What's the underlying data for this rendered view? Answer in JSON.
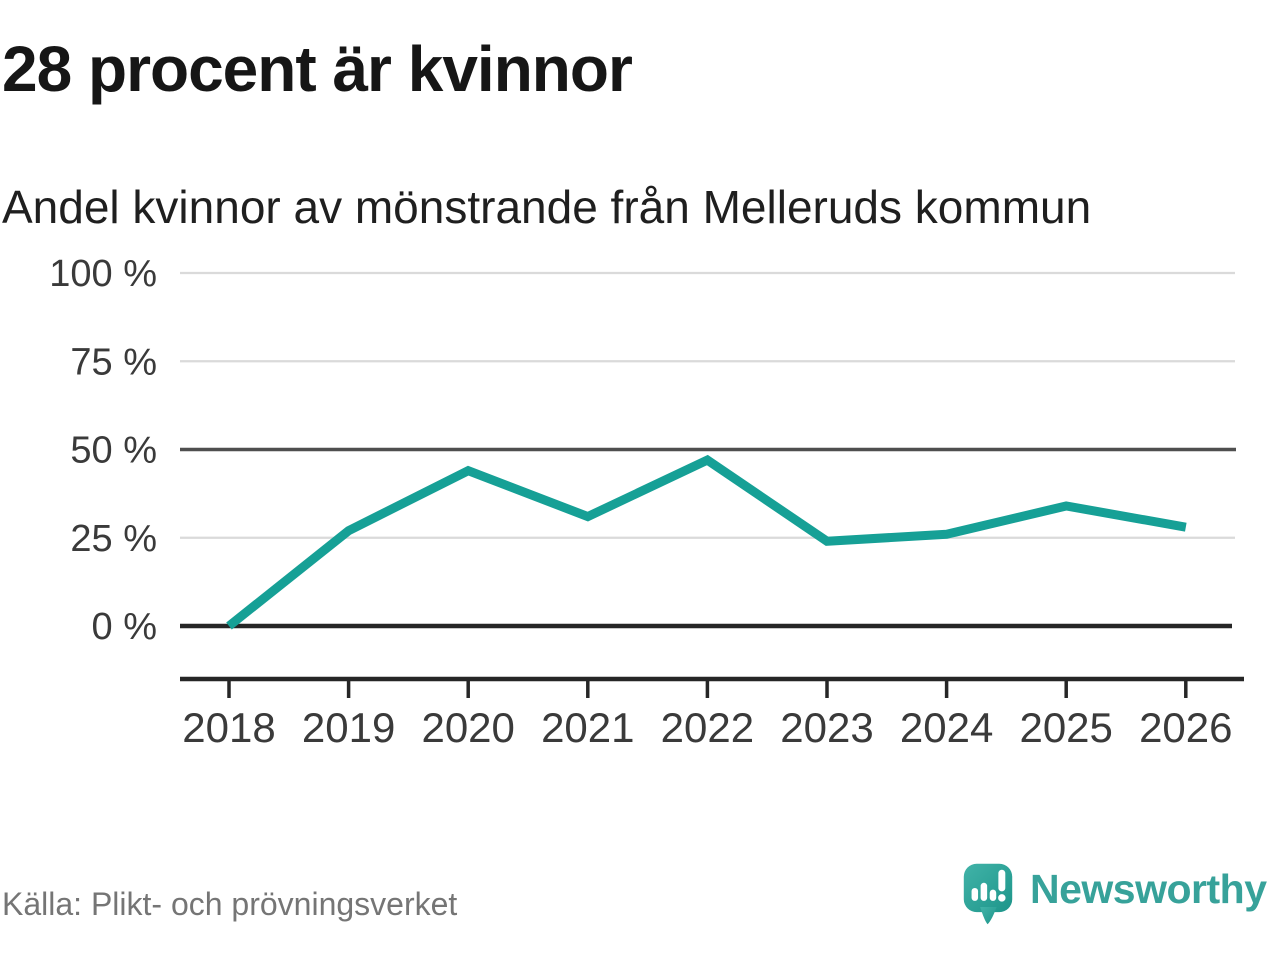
{
  "header": {
    "title": "28 procent är kvinnor",
    "subtitle": "Andel kvinnor av mönstrande från Melleruds kommun"
  },
  "chart_data": {
    "type": "line",
    "title": "28 procent är kvinnor",
    "subtitle": "Andel kvinnor av mönstrande från Melleruds kommun",
    "categories": [
      "2018",
      "2019",
      "2020",
      "2021",
      "2022",
      "2023",
      "2024",
      "2025",
      "2026"
    ],
    "values": [
      0,
      27,
      44,
      31,
      47,
      24,
      26,
      34,
      28
    ],
    "unit": "%",
    "xlabel": "",
    "ylabel": "",
    "ylim": [
      0,
      100
    ],
    "yticks": [
      0,
      25,
      50,
      75,
      100
    ],
    "ytick_labels": [
      "0 %",
      "25 %",
      "50 %",
      "75 %",
      "100 %"
    ],
    "grid": "horizontal",
    "legend": "none",
    "line_color": "#16a096",
    "emphasized_gridlines": [
      0,
      50
    ]
  },
  "footer": {
    "source": "Källa: Plikt- och prövningsverket",
    "brand": "Newsworthy"
  },
  "colors": {
    "accent_teal": "#16a096",
    "brand_teal": "#37a29a",
    "text_dark": "#161616",
    "axis_text": "#3a3a3a",
    "grid_light": "#dadada",
    "grid_dark": "#4f4f4f",
    "source_gray": "#757575"
  }
}
